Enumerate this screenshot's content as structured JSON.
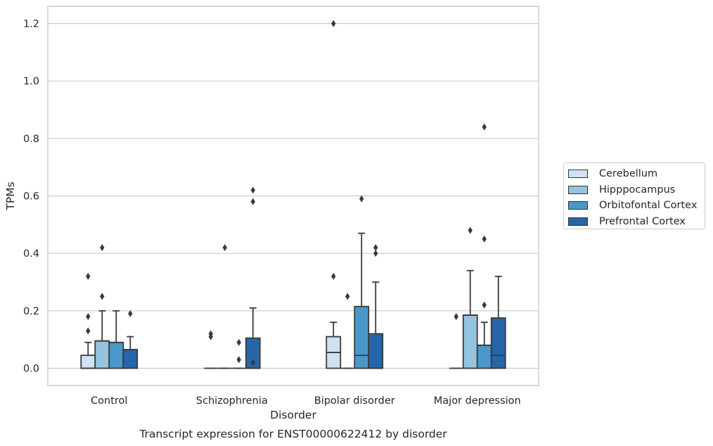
{
  "chart_data": {
    "type": "box",
    "title": "",
    "caption": "Transcript expression for ENST00000622412 by disorder",
    "xlabel": "Disorder",
    "ylabel": "TPMs",
    "ylim": [
      -0.06,
      1.26
    ],
    "yticks": [
      "0.0",
      "0.2",
      "0.4",
      "0.6",
      "0.8",
      "1.0",
      "1.2"
    ],
    "grid": "horizontal",
    "legend_position": "center-right",
    "categories": [
      "Control",
      "Schizophrenia",
      "Bipolar disorder",
      "Major depression"
    ],
    "series": [
      {
        "name": "Cerebellum",
        "color": "#d0e1f2",
        "boxes": [
          {
            "q1": 0.0,
            "median": 0.0,
            "q3": 0.045,
            "whisker_low": 0.0,
            "whisker_high": 0.09,
            "outliers": [
              0.13,
              0.18,
              0.32
            ]
          },
          {
            "q1": 0.0,
            "median": 0.0,
            "q3": 0.0,
            "whisker_low": 0.0,
            "whisker_high": 0.0,
            "outliers": [
              0.11,
              0.12
            ]
          },
          {
            "q1": 0.0,
            "median": 0.055,
            "q3": 0.11,
            "whisker_low": 0.0,
            "whisker_high": 0.16,
            "outliers": [
              0.32,
              1.2
            ]
          },
          {
            "q1": 0.0,
            "median": 0.0,
            "q3": 0.0,
            "whisker_low": 0.0,
            "whisker_high": 0.0,
            "outliers": [
              0.18
            ]
          }
        ]
      },
      {
        "name": "Hipppocampus",
        "color": "#94c4df",
        "boxes": [
          {
            "q1": 0.0,
            "median": 0.095,
            "q3": 0.095,
            "whisker_low": 0.0,
            "whisker_high": 0.2,
            "outliers": [
              0.25,
              0.42
            ]
          },
          {
            "q1": 0.0,
            "median": 0.0,
            "q3": 0.0,
            "whisker_low": 0.0,
            "whisker_high": 0.0,
            "outliers": [
              0.42
            ]
          },
          {
            "q1": 0.0,
            "median": 0.0,
            "q3": 0.0,
            "whisker_low": 0.0,
            "whisker_high": 0.0,
            "outliers": [
              0.25
            ]
          },
          {
            "q1": 0.0,
            "median": 0.185,
            "q3": 0.185,
            "whisker_low": 0.0,
            "whisker_high": 0.34,
            "outliers": [
              0.48
            ]
          }
        ]
      },
      {
        "name": "Orbitofontal Cortex",
        "color": "#4a98c9",
        "boxes": [
          {
            "q1": 0.0,
            "median": 0.09,
            "q3": 0.09,
            "whisker_low": 0.0,
            "whisker_high": 0.2,
            "outliers": []
          },
          {
            "q1": 0.0,
            "median": 0.0,
            "q3": 0.0,
            "whisker_low": 0.0,
            "whisker_high": 0.0,
            "outliers": [
              0.03,
              0.09
            ]
          },
          {
            "q1": 0.0,
            "median": 0.045,
            "q3": 0.215,
            "whisker_low": 0.0,
            "whisker_high": 0.47,
            "outliers": [
              0.59
            ]
          },
          {
            "q1": 0.0,
            "median": 0.08,
            "q3": 0.08,
            "whisker_low": 0.0,
            "whisker_high": 0.16,
            "outliers": [
              0.22,
              0.45,
              0.84
            ]
          }
        ]
      },
      {
        "name": "Prefrontal Cortex",
        "color": "#2565a8",
        "boxes": [
          {
            "q1": 0.0,
            "median": 0.065,
            "q3": 0.065,
            "whisker_low": 0.0,
            "whisker_high": 0.11,
            "outliers": [
              0.19
            ]
          },
          {
            "q1": 0.0,
            "median": 0.0,
            "q3": 0.105,
            "whisker_low": 0.0,
            "whisker_high": 0.21,
            "outliers": [
              0.02,
              0.58,
              0.62
            ]
          },
          {
            "q1": 0.0,
            "median": 0.0,
            "q3": 0.12,
            "whisker_low": 0.0,
            "whisker_high": 0.3,
            "outliers": [
              0.4,
              0.42
            ]
          },
          {
            "q1": 0.0,
            "median": 0.045,
            "q3": 0.175,
            "whisker_low": 0.0,
            "whisker_high": 0.32,
            "outliers": []
          }
        ]
      }
    ]
  }
}
